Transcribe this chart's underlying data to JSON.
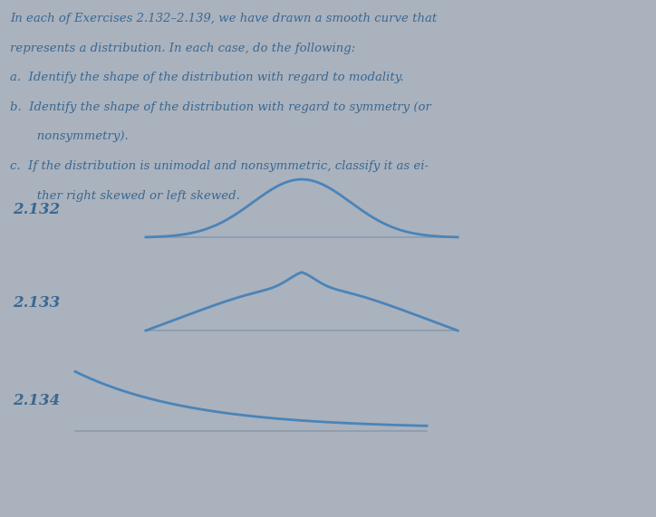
{
  "bg_color": "#aab2be",
  "curve_color": "#4a84b8",
  "baseline_color": "#8899aa",
  "text_color": "#3a6890",
  "label_color": "#3a6890",
  "title_lines": [
    "In each of Exercises 2.132–2.139, we have drawn a smooth curve that",
    "represents a distribution. In each case, do the following:",
    "a.  Identify the shape of the distribution with regard to modality.",
    "b.  Identify the shape of the distribution with regard to symmetry (or",
    "       nonsymmetry).",
    "c.  If the distribution is unimodal and nonsymmetric, classify it as ei-",
    "       ther right skewed or left skewed."
  ],
  "labels": [
    "2.132",
    "2.133",
    "2.134"
  ],
  "fig_width": 7.24,
  "fig_height": 5.71,
  "text_fontsize": 9.5,
  "label_fontsize": 12
}
